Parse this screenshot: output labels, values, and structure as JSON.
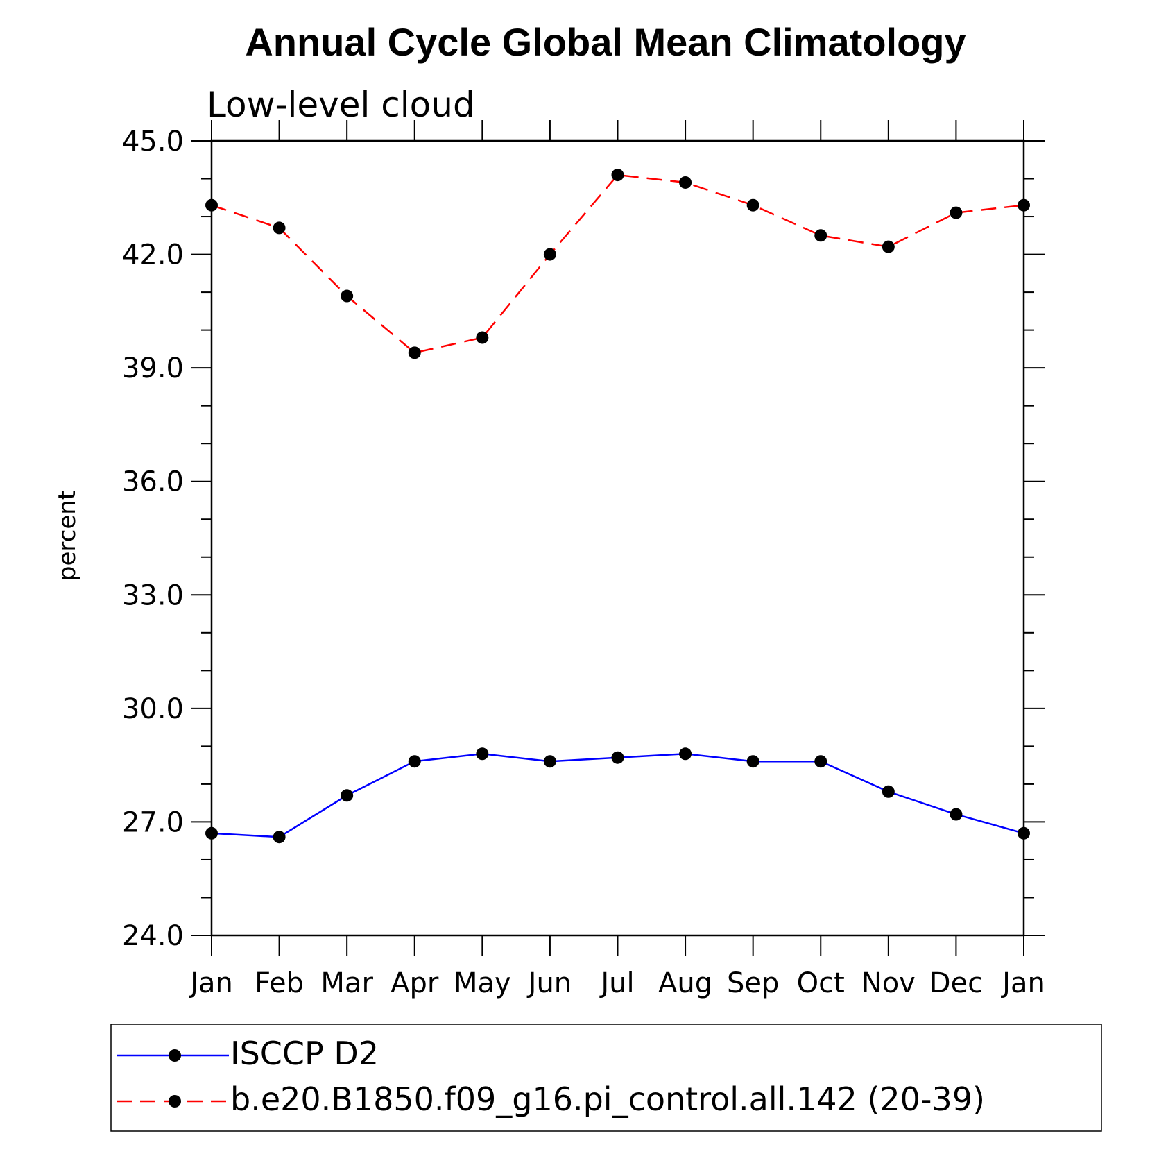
{
  "chart_data": {
    "type": "line",
    "title": "Annual Cycle Global Mean Climatology",
    "subtitle": "Low-level cloud",
    "xlabel": "",
    "ylabel": "percent",
    "categories": [
      "Jan",
      "Feb",
      "Mar",
      "Apr",
      "May",
      "Jun",
      "Jul",
      "Aug",
      "Sep",
      "Oct",
      "Nov",
      "Dec",
      "Jan"
    ],
    "ylim": [
      24.0,
      45.0
    ],
    "yticks": [
      "24.0",
      "27.0",
      "30.0",
      "33.0",
      "36.0",
      "39.0",
      "42.0",
      "45.0"
    ],
    "legend_position": "bottom",
    "series": [
      {
        "name": "ISCCP D2",
        "color": "#0000ff",
        "line_style": "solid",
        "marker": "filled-circle",
        "values": [
          26.7,
          26.6,
          27.7,
          28.6,
          28.8,
          28.6,
          28.7,
          28.8,
          28.6,
          28.6,
          27.8,
          27.2,
          26.7
        ]
      },
      {
        "name": "b.e20.B1850.f09_g16.pi_control.all.142 (20-39)",
        "color": "#ff0000",
        "line_style": "dashed",
        "marker": "filled-circle",
        "values": [
          43.3,
          42.7,
          40.9,
          39.4,
          39.8,
          42.0,
          44.1,
          43.9,
          43.3,
          42.5,
          42.2,
          43.1,
          43.3
        ]
      }
    ]
  }
}
